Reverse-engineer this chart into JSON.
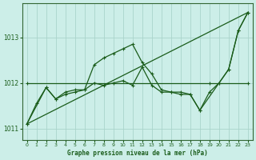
{
  "xlabel": "Graphe pression niveau de la mer (hPa)",
  "background_color": "#cceee8",
  "grid_color": "#aad4cc",
  "line_color": "#1a5c1a",
  "ylim": [
    1010.75,
    1013.75
  ],
  "yticks": [
    1011,
    1012,
    1013
  ],
  "xlim": [
    -0.5,
    23.5
  ],
  "xticks": [
    0,
    1,
    2,
    3,
    4,
    5,
    6,
    7,
    8,
    9,
    10,
    11,
    12,
    13,
    14,
    15,
    16,
    17,
    18,
    19,
    20,
    21,
    22,
    23
  ],
  "series": [
    {
      "x": [
        0,
        1,
        2,
        3,
        4,
        5,
        6,
        7,
        8,
        9,
        10,
        11,
        12,
        13,
        14,
        15,
        16,
        17,
        18,
        19,
        20,
        21,
        22,
        23
      ],
      "y": [
        1011.1,
        1011.55,
        1011.9,
        1011.65,
        1011.75,
        1011.8,
        1011.85,
        1012.4,
        1012.55,
        1012.65,
        1012.75,
        1012.85,
        1012.45,
        1012.2,
        1011.85,
        1011.8,
        1011.75,
        1011.75,
        1011.4,
        1011.8,
        1012.0,
        1012.3,
        1013.15,
        1013.55
      ]
    },
    {
      "x": [
        0,
        2,
        3,
        4,
        5,
        6,
        7,
        8,
        9,
        10,
        11,
        12,
        13,
        14,
        15,
        16,
        17,
        18,
        20,
        21,
        22,
        23
      ],
      "y": [
        1011.1,
        1011.9,
        1011.65,
        1011.8,
        1011.85,
        1011.85,
        1012.0,
        1011.95,
        1012.0,
        1012.05,
        1011.95,
        1012.35,
        1011.95,
        1011.8,
        1011.8,
        1011.8,
        1011.75,
        1011.4,
        1012.0,
        1012.3,
        1013.15,
        1013.55
      ]
    },
    {
      "x": [
        0,
        19,
        23
      ],
      "y": [
        1012.0,
        1012.0,
        1012.0
      ]
    },
    {
      "x": [
        0,
        23
      ],
      "y": [
        1011.1,
        1013.55
      ]
    }
  ]
}
